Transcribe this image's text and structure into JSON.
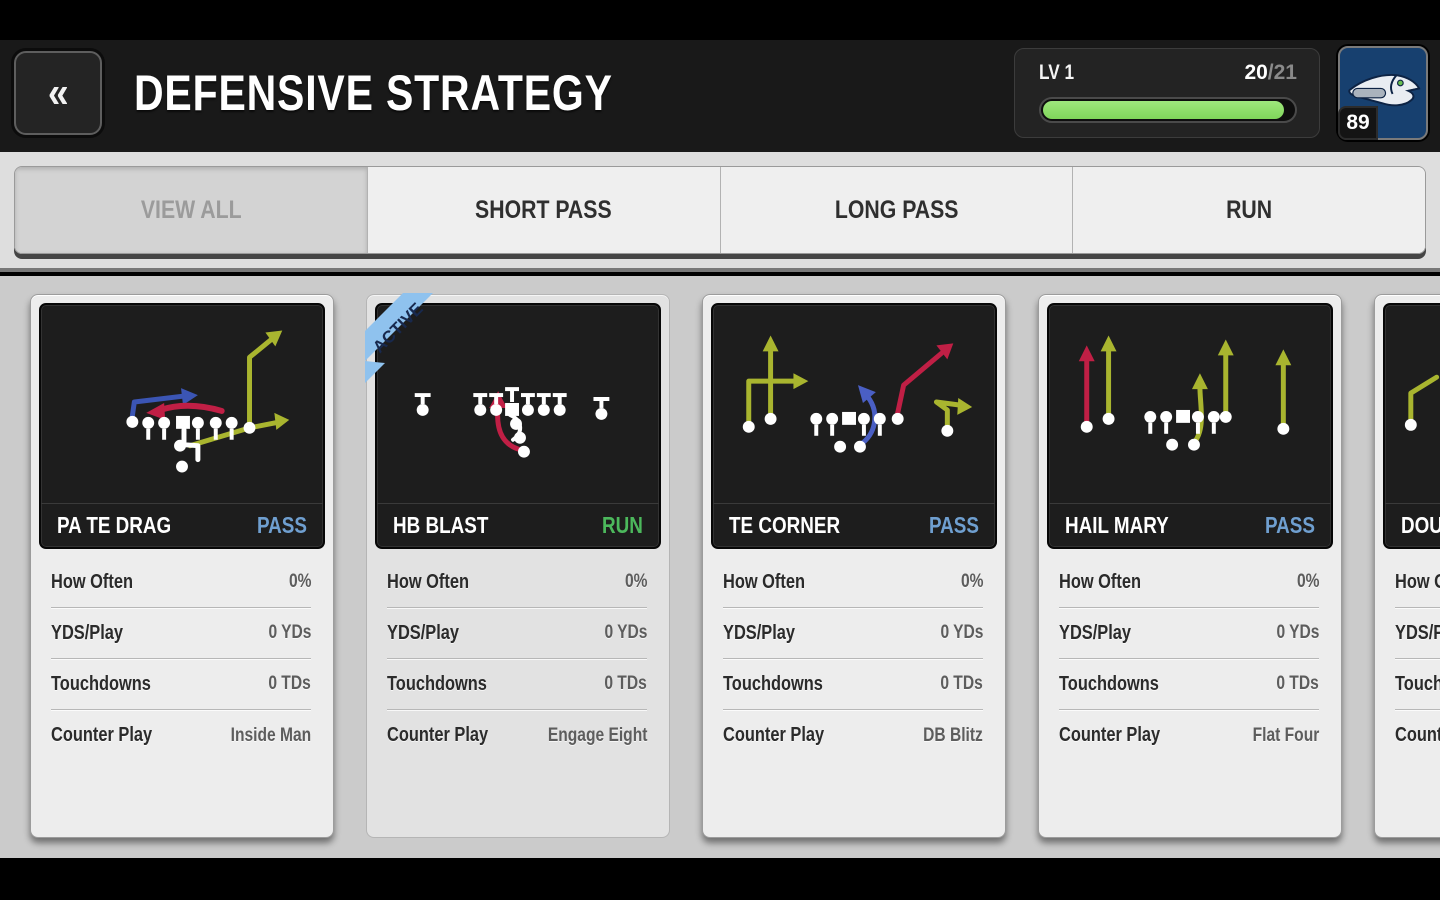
{
  "header": {
    "title": "DEFENSIVE STRATEGY",
    "back_glyph": "«",
    "level": {
      "label": "LV 1",
      "current": "20",
      "rest": "/21",
      "progress_pct": 95
    },
    "team": {
      "rating": "89",
      "name": "Seattle Seahawks"
    }
  },
  "tabs": [
    {
      "label": "VIEW ALL",
      "selected": true
    },
    {
      "label": "SHORT PASS",
      "selected": false
    },
    {
      "label": "LONG PASS",
      "selected": false
    },
    {
      "label": "RUN",
      "selected": false
    }
  ],
  "active_badge": "ACTIVE",
  "cards": [
    {
      "name": "PA TE DRAG",
      "type": "PASS",
      "active": false,
      "stats": [
        {
          "label": "How Often",
          "value": "0%"
        },
        {
          "label": "YDS/Play",
          "value": "0 YDs"
        },
        {
          "label": "Touchdowns",
          "value": "0 TDs"
        },
        {
          "label": "Counter Play",
          "value": "Inside Man"
        }
      ]
    },
    {
      "name": "HB BLAST",
      "type": "RUN",
      "active": true,
      "stats": [
        {
          "label": "How Often",
          "value": "0%"
        },
        {
          "label": "YDS/Play",
          "value": "0 YDs"
        },
        {
          "label": "Touchdowns",
          "value": "0 TDs"
        },
        {
          "label": "Counter Play",
          "value": "Engage Eight"
        }
      ]
    },
    {
      "name": "TE CORNER",
      "type": "PASS",
      "active": false,
      "stats": [
        {
          "label": "How Often",
          "value": "0%"
        },
        {
          "label": "YDS/Play",
          "value": "0 YDs"
        },
        {
          "label": "Touchdowns",
          "value": "0 TDs"
        },
        {
          "label": "Counter Play",
          "value": "DB Blitz"
        }
      ]
    },
    {
      "name": "HAIL MARY",
      "type": "PASS",
      "active": false,
      "stats": [
        {
          "label": "How Often",
          "value": "0%"
        },
        {
          "label": "YDS/Play",
          "value": "0 YDs"
        },
        {
          "label": "Touchdowns",
          "value": "0 TDs"
        },
        {
          "label": "Counter Play",
          "value": "Flat Four"
        }
      ]
    },
    {
      "name": "DOUB",
      "type": "",
      "active": false,
      "stats": [
        {
          "label": "How Often",
          "value": ""
        },
        {
          "label": "YDS/Play",
          "value": ""
        },
        {
          "label": "Touchdowns",
          "value": ""
        },
        {
          "label": "Counter Play",
          "value": ""
        }
      ]
    }
  ],
  "colors": {
    "pass_type": "#6f9fd0",
    "run_type": "#4cb85c",
    "active_ribbon": "#8fc2ee",
    "progress_fill": "#8ce06c",
    "route_yellow": "#a9b52f",
    "route_red": "#c01f45",
    "route_blue": "#3b55b4"
  }
}
